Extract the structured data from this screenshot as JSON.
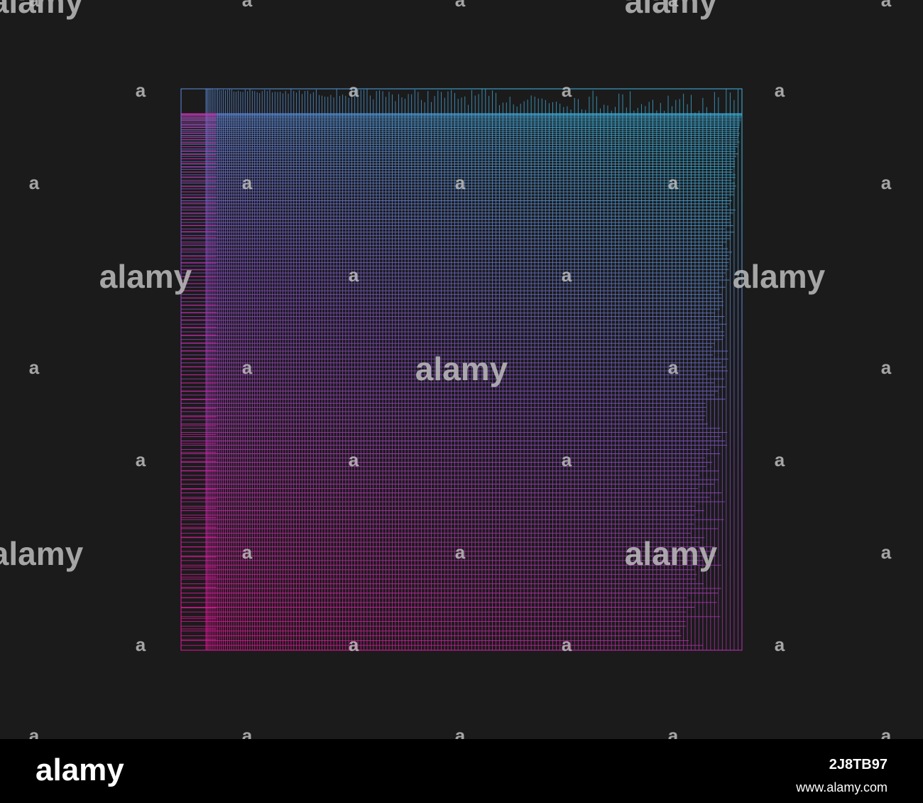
{
  "watermark": {
    "logo": "alamy",
    "mark": "a"
  },
  "footer": {
    "logo": "alamy",
    "image_id": "2J8TB97",
    "url": "www.alamy.com"
  }
}
